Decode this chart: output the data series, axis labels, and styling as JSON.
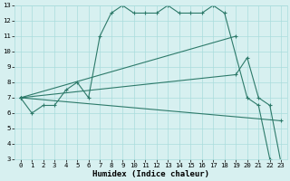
{
  "line1_x": [
    0,
    1,
    2,
    3,
    4,
    5,
    6,
    7,
    8,
    9,
    10,
    11,
    12,
    13,
    14,
    15,
    16,
    17,
    18,
    20,
    21,
    22,
    23
  ],
  "line1_y": [
    7.0,
    6.0,
    6.5,
    6.5,
    7.5,
    8.0,
    7.0,
    11.0,
    12.5,
    13.0,
    12.5,
    12.5,
    12.5,
    13.0,
    12.5,
    12.5,
    12.5,
    13.0,
    12.5,
    7.0,
    6.5,
    3.0,
    2.7
  ],
  "line2_x": [
    0,
    19
  ],
  "line2_y": [
    7.0,
    11.0
  ],
  "line3_x": [
    0,
    19,
    20,
    21,
    22,
    23
  ],
  "line3_y": [
    7.0,
    8.5,
    9.6,
    7.0,
    6.5,
    2.7
  ],
  "line4_x": [
    0,
    23
  ],
  "line4_y": [
    7.0,
    5.5
  ],
  "bg_color": "#d7f0f0",
  "grid_color": "#aadcdc",
  "line_color": "#2d7a6a",
  "xlabel": "Humidex (Indice chaleur)",
  "xlim": [
    -0.5,
    23.5
  ],
  "ylim": [
    3,
    13
  ],
  "xticks": [
    0,
    1,
    2,
    3,
    4,
    5,
    6,
    7,
    8,
    9,
    10,
    11,
    12,
    13,
    14,
    15,
    16,
    17,
    18,
    19,
    20,
    21,
    22,
    23
  ],
  "yticks": [
    3,
    4,
    5,
    6,
    7,
    8,
    9,
    10,
    11,
    12,
    13
  ],
  "tick_fontsize": 5.2,
  "xlabel_fontsize": 6.5,
  "marker_size": 2.2,
  "linewidth": 0.8
}
